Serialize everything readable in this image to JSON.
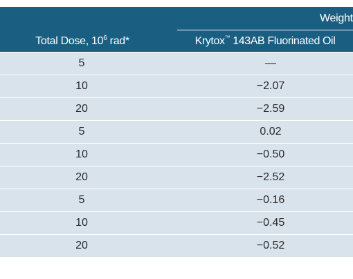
{
  "header": {
    "group_label": "Weight",
    "dose_label": "Total Dose, 10",
    "dose_exp": "6",
    "dose_unit": " rad*",
    "product_name": "Krytox",
    "product_tm": "™",
    "product_suffix": " 143AB Fluorinated Oil"
  },
  "rows": [
    {
      "dose": "5",
      "value": "—"
    },
    {
      "dose": "10",
      "value": "−2.07"
    },
    {
      "dose": "20",
      "value": "−2.59"
    },
    {
      "dose": "5",
      "value": "0.02"
    },
    {
      "dose": "10",
      "value": "−0.50"
    },
    {
      "dose": "20",
      "value": "−2.52"
    },
    {
      "dose": "5",
      "value": "−0.16"
    },
    {
      "dose": "10",
      "value": "−0.45"
    },
    {
      "dose": "20",
      "value": "−0.52"
    }
  ]
}
